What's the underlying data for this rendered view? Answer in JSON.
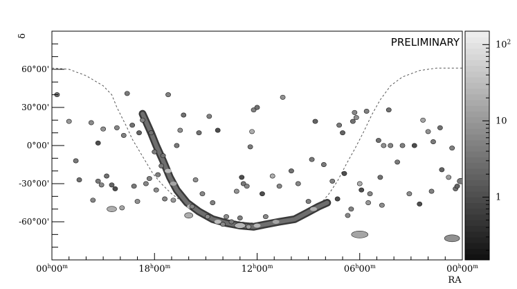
{
  "chart_data": {
    "type": "scatter",
    "title": "",
    "annotation": "PRELIMINARY",
    "xlabel": "RA",
    "ylabel": "δ",
    "x_axis_reversed": true,
    "xlim_hours": [
      0,
      24
    ],
    "ylim_deg": [
      -90,
      90
    ],
    "x_ticks": [
      {
        "value": 24,
        "h": "00",
        "m": "00"
      },
      {
        "value": 18,
        "h": "18",
        "m": "00"
      },
      {
        "value": 12,
        "h": "12",
        "m": "00"
      },
      {
        "value": 6,
        "h": "06",
        "m": "00"
      },
      {
        "value": 0,
        "h": "00",
        "m": "00"
      }
    ],
    "y_ticks": [
      {
        "value": 60,
        "label": "60°00'"
      },
      {
        "value": 30,
        "label": "30°00'"
      },
      {
        "value": 0,
        "label": "0°00'"
      },
      {
        "value": -30,
        "label": "-30°00'"
      },
      {
        "value": -60,
        "label": "-60°00'"
      }
    ],
    "colorbar": {
      "scale": "log",
      "range": [
        0.15,
        150
      ],
      "ticks": [
        {
          "value": 100,
          "label": "10",
          "sup": "2"
        },
        {
          "value": 10,
          "label": "10",
          "sup": ""
        },
        {
          "value": 1,
          "label": "1",
          "sup": ""
        }
      ]
    },
    "galactic_plane": [
      [
        24.0,
        61
      ],
      [
        23.0,
        60
      ],
      [
        22.0,
        55
      ],
      [
        21.0,
        47
      ],
      [
        20.5,
        40
      ],
      [
        20.2,
        30
      ],
      [
        19.9,
        22
      ],
      [
        19.6,
        14
      ],
      [
        19.3,
        5
      ],
      [
        18.9,
        -4
      ],
      [
        18.5,
        -13
      ],
      [
        18.1,
        -22
      ],
      [
        17.6,
        -30
      ],
      [
        17.0,
        -38
      ],
      [
        16.3,
        -45
      ],
      [
        15.5,
        -51
      ],
      [
        14.5,
        -56
      ],
      [
        13.5,
        -59
      ],
      [
        12.5,
        -61
      ],
      [
        11.5,
        -61
      ],
      [
        10.5,
        -60
      ],
      [
        9.5,
        -57
      ],
      [
        8.7,
        -52
      ],
      [
        8.3,
        -46
      ],
      [
        7.8,
        -38
      ],
      [
        7.3,
        -28
      ],
      [
        6.8,
        -15
      ],
      [
        6.3,
        -3
      ],
      [
        5.8,
        10
      ],
      [
        5.3,
        24
      ],
      [
        4.8,
        36
      ],
      [
        4.2,
        47
      ],
      [
        3.5,
        54
      ],
      [
        2.5,
        59
      ],
      [
        1.5,
        61
      ],
      [
        0.0,
        61
      ]
    ],
    "sources": [
      [
        23.7,
        40,
        3
      ],
      [
        21.6,
        -43,
        6
      ],
      [
        23.0,
        19,
        10
      ],
      [
        22.6,
        -12,
        4
      ],
      [
        22.4,
        -27,
        3
      ],
      [
        21.7,
        18,
        7
      ],
      [
        21.3,
        2,
        1
      ],
      [
        21.3,
        -28,
        4
      ],
      [
        21.1,
        -31,
        6
      ],
      [
        21.0,
        13,
        8
      ],
      [
        20.8,
        -24,
        3
      ],
      [
        20.5,
        -31,
        2
      ],
      [
        20.3,
        -34,
        1
      ],
      [
        20.2,
        14,
        6
      ],
      [
        19.9,
        -49,
        15
      ],
      [
        19.8,
        8,
        5
      ],
      [
        19.6,
        41,
        4
      ],
      [
        19.3,
        16,
        3
      ],
      [
        19.2,
        -32,
        4
      ],
      [
        19.0,
        -44,
        8
      ],
      [
        18.9,
        10,
        2
      ],
      [
        18.7,
        20,
        5
      ],
      [
        18.5,
        -30,
        6
      ],
      [
        18.3,
        -26,
        5
      ],
      [
        18.2,
        10,
        3
      ],
      [
        18.0,
        -5,
        4
      ],
      [
        17.9,
        -35,
        7
      ],
      [
        17.8,
        -23,
        5
      ],
      [
        17.6,
        -16,
        4
      ],
      [
        17.5,
        -8,
        3
      ],
      [
        17.4,
        -42,
        6
      ],
      [
        17.2,
        40,
        5
      ],
      [
        16.9,
        -43,
        10
      ],
      [
        16.7,
        0,
        4
      ],
      [
        16.5,
        12,
        8
      ],
      [
        16.3,
        24,
        3
      ],
      [
        15.8,
        -48,
        6
      ],
      [
        15.6,
        -27,
        8
      ],
      [
        15.4,
        10,
        3
      ],
      [
        15.2,
        -38,
        6
      ],
      [
        14.9,
        -56,
        7
      ],
      [
        14.8,
        23,
        5
      ],
      [
        14.6,
        -45,
        5
      ],
      [
        14.3,
        12,
        1
      ],
      [
        14.0,
        -62,
        6
      ],
      [
        13.8,
        -56,
        7
      ],
      [
        13.5,
        -60,
        4
      ],
      [
        13.2,
        -36,
        9
      ],
      [
        13.0,
        -57,
        5
      ],
      [
        12.9,
        -25,
        1
      ],
      [
        12.8,
        -30,
        4
      ],
      [
        12.6,
        -32,
        6
      ],
      [
        12.5,
        -64,
        12
      ],
      [
        12.4,
        -1,
        4
      ],
      [
        12.3,
        11,
        20
      ],
      [
        12.2,
        28,
        5
      ],
      [
        12.0,
        30,
        3
      ],
      [
        11.7,
        -38,
        1
      ],
      [
        11.5,
        -56,
        6
      ],
      [
        11.1,
        -24,
        20
      ],
      [
        10.7,
        -32,
        6
      ],
      [
        10.5,
        38,
        8
      ],
      [
        10.0,
        -20,
        3
      ],
      [
        9.6,
        -30,
        6
      ],
      [
        9.0,
        -44,
        5
      ],
      [
        8.8,
        -11,
        4
      ],
      [
        8.6,
        19,
        2
      ],
      [
        8.1,
        -15,
        4
      ],
      [
        7.6,
        -28,
        5
      ],
      [
        7.3,
        -42,
        1
      ],
      [
        7.2,
        16,
        4
      ],
      [
        7.0,
        10,
        2
      ],
      [
        6.9,
        -22,
        1
      ],
      [
        6.7,
        -55,
        6
      ],
      [
        6.5,
        -50,
        5
      ],
      [
        6.4,
        19,
        3
      ],
      [
        6.3,
        26,
        6
      ],
      [
        6.2,
        22,
        8
      ],
      [
        6.0,
        -30,
        20
      ],
      [
        5.9,
        -35,
        1
      ],
      [
        5.6,
        27,
        5
      ],
      [
        5.5,
        -45,
        10
      ],
      [
        5.4,
        -38,
        6
      ],
      [
        4.9,
        4,
        3
      ],
      [
        4.8,
        -25,
        3
      ],
      [
        4.7,
        -47,
        7
      ],
      [
        4.6,
        0,
        8
      ],
      [
        4.3,
        28,
        3
      ],
      [
        4.2,
        0,
        6
      ],
      [
        3.8,
        -13,
        4
      ],
      [
        3.5,
        0,
        5
      ],
      [
        3.1,
        -38,
        7
      ],
      [
        2.8,
        0,
        1
      ],
      [
        2.5,
        -46,
        1
      ],
      [
        2.3,
        20,
        15
      ],
      [
        2.0,
        11,
        8
      ],
      [
        1.8,
        -36,
        5
      ],
      [
        1.7,
        3,
        4
      ],
      [
        1.3,
        14,
        3
      ],
      [
        1.2,
        -19,
        2
      ],
      [
        0.8,
        -25,
        12
      ],
      [
        0.6,
        -2,
        5
      ],
      [
        0.4,
        -34,
        3
      ],
      [
        0.3,
        -32,
        2
      ]
    ],
    "extended_sources": [
      [
        6.0,
        -70,
        15,
        12,
        5
      ],
      [
        0.6,
        -73,
        8,
        11,
        5
      ],
      [
        20.5,
        -50,
        20,
        7,
        4
      ],
      [
        13.0,
        -63,
        25,
        8,
        4
      ],
      [
        16.0,
        -55,
        20,
        6,
        4
      ],
      [
        0.1,
        -28,
        4,
        5,
        4
      ]
    ],
    "plane_track": [
      [
        18.7,
        25
      ],
      [
        18.2,
        10
      ],
      [
        17.9,
        0
      ],
      [
        17.5,
        -12
      ],
      [
        17.1,
        -25
      ],
      [
        16.7,
        -35
      ],
      [
        16.1,
        -45
      ],
      [
        15.4,
        -52
      ],
      [
        14.6,
        -58
      ],
      [
        13.8,
        -61
      ],
      [
        13.0,
        -63
      ],
      [
        12.2,
        -64
      ],
      [
        11.5,
        -62
      ],
      [
        10.7,
        -60
      ],
      [
        9.8,
        -58
      ],
      [
        9.1,
        -53
      ],
      [
        8.4,
        -48
      ],
      [
        7.9,
        -45
      ]
    ],
    "plane_bright_spots": [
      [
        17.2,
        -20,
        30
      ],
      [
        16.9,
        -30,
        15
      ],
      [
        15.9,
        -48,
        25
      ],
      [
        14.3,
        -60,
        30
      ],
      [
        13.1,
        -63,
        40
      ],
      [
        12.0,
        -63,
        25
      ],
      [
        10.9,
        -60,
        15
      ],
      [
        8.7,
        -50,
        20
      ]
    ]
  }
}
